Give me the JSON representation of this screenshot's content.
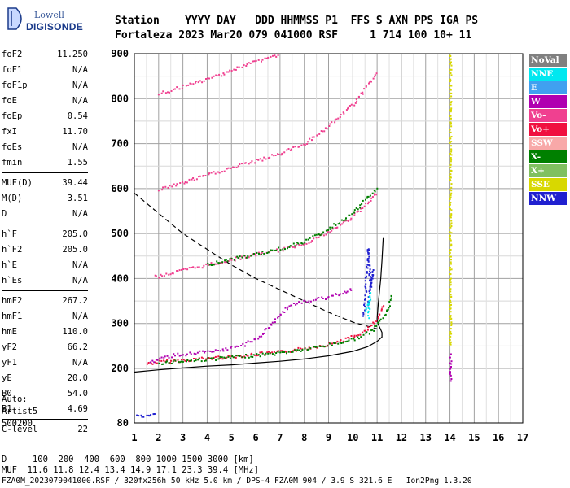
{
  "logo": {
    "line1": "Lowell",
    "line2": "DIGISONDE"
  },
  "header": {
    "line1": "Station    YYYY DAY   DDD HHMMSS P1  FFS S AXN PPS IGA PS",
    "line2": "Fortaleza 2023 Mar20 079 041000 RSF     1 714 100 10+ 11"
  },
  "params": [
    {
      "key": "foF2",
      "value": "11.250"
    },
    {
      "key": "foF1",
      "value": "N/A"
    },
    {
      "key": "foF1p",
      "value": "N/A"
    },
    {
      "key": "foE",
      "value": "N/A"
    },
    {
      "key": "foEp",
      "value": "0.54"
    },
    {
      "key": "fxI",
      "value": "11.70"
    },
    {
      "key": "foEs",
      "value": "N/A"
    },
    {
      "key": "fmin",
      "value": "1.55"
    },
    {
      "key": "MUF(D)",
      "value": "39.44"
    },
    {
      "key": "M(D)",
      "value": "3.51"
    },
    {
      "key": "D",
      "value": "N/A"
    },
    {
      "key": "h`F",
      "value": "205.0"
    },
    {
      "key": "h`F2",
      "value": "205.0"
    },
    {
      "key": "h`E",
      "value": "N/A"
    },
    {
      "key": "h`Es",
      "value": "N/A"
    },
    {
      "key": "hmF2",
      "value": "267.2"
    },
    {
      "key": "hmF1",
      "value": "N/A"
    },
    {
      "key": "hmE",
      "value": "110.0"
    },
    {
      "key": "yF2",
      "value": "66.2"
    },
    {
      "key": "yF1",
      "value": "N/A"
    },
    {
      "key": "yE",
      "value": "20.0"
    },
    {
      "key": "B0",
      "value": "54.0"
    },
    {
      "key": "B1",
      "value": "4.69"
    },
    {
      "key": "C-level",
      "value": "22"
    }
  ],
  "auto": {
    "line1": "Auto:",
    "line2": "Artist5",
    "line3": "500200"
  },
  "bottom": {
    "d_row": "D     100  200  400  600  800 1000 1500 3000 [km]",
    "muf_row": "MUF  11.6 11.8 12.4 13.4 14.9 17.1 23.3 39.4 [MHz]",
    "file_row": "FZA0M_2023079041000.RSF / 320fx256h 50 kHz 5.0 km / DPS-4 FZA0M 904 / 3.9 S 321.6 E   Ion2Png 1.3.20"
  },
  "legend": [
    {
      "label": "NoVal",
      "color": "#808080"
    },
    {
      "label": "NNE",
      "color": "#00e8f0"
    },
    {
      "label": "E",
      "color": "#40a0f0"
    },
    {
      "label": "W",
      "color": "#b000b0"
    },
    {
      "label": "Vo-",
      "color": "#f04090"
    },
    {
      "label": "Vo+",
      "color": "#f01040"
    },
    {
      "label": "SSW",
      "color": "#f8a8a8"
    },
    {
      "label": "X-",
      "color": "#008000"
    },
    {
      "label": "X+",
      "color": "#80c060"
    },
    {
      "label": "SSE",
      "color": "#d8d800"
    },
    {
      "label": "NNW",
      "color": "#2020d0"
    }
  ],
  "chart_data": {
    "type": "scatter",
    "xlim": [
      1,
      17
    ],
    "ylim": [
      80,
      900
    ],
    "x_ticks": [
      1,
      2,
      3,
      4,
      5,
      6,
      7,
      8,
      9,
      10,
      11,
      12,
      13,
      14,
      15,
      16,
      17
    ],
    "y_ticks": [
      80,
      200,
      300,
      400,
      500,
      600,
      700,
      800,
      900
    ],
    "grid": true,
    "traces": [
      {
        "name": "O-trace 1st hop",
        "color": "#f01040",
        "points": [
          [
            1.5,
            212
          ],
          [
            2,
            216
          ],
          [
            3,
            220
          ],
          [
            4,
            224
          ],
          [
            5,
            228
          ],
          [
            6,
            233
          ],
          [
            7,
            238
          ],
          [
            8,
            246
          ],
          [
            9,
            256
          ],
          [
            10,
            272
          ],
          [
            10.5,
            285
          ],
          [
            11,
            310
          ],
          [
            11.25,
            345
          ]
        ]
      },
      {
        "name": "X-trace 1st hop",
        "color": "#008000",
        "points": [
          [
            2,
            214
          ],
          [
            3,
            218
          ],
          [
            4,
            222
          ],
          [
            5,
            226
          ],
          [
            6,
            231
          ],
          [
            7,
            236
          ],
          [
            8,
            244
          ],
          [
            9,
            254
          ],
          [
            10,
            266
          ],
          [
            10.8,
            285
          ],
          [
            11.4,
            330
          ],
          [
            11.6,
            370
          ]
        ]
      },
      {
        "name": "O-trace 2nd hop",
        "color": "#f04090",
        "points": [
          [
            1.8,
            405
          ],
          [
            3,
            420
          ],
          [
            4,
            432
          ],
          [
            5,
            444
          ],
          [
            6,
            455
          ],
          [
            7,
            465
          ],
          [
            8,
            480
          ],
          [
            9,
            505
          ],
          [
            10,
            540
          ],
          [
            10.7,
            575
          ],
          [
            11,
            595
          ]
        ]
      },
      {
        "name": "X-trace 2nd hop",
        "color": "#008000",
        "points": [
          [
            4,
            433
          ],
          [
            5,
            445
          ],
          [
            6,
            456
          ],
          [
            7,
            468
          ],
          [
            8,
            484
          ],
          [
            9,
            512
          ],
          [
            10,
            548
          ],
          [
            11,
            605
          ]
        ]
      },
      {
        "name": "O-trace 3rd hop",
        "color": "#f04090",
        "points": [
          [
            2,
            600
          ],
          [
            3,
            615
          ],
          [
            4,
            632
          ],
          [
            5,
            648
          ],
          [
            6,
            663
          ],
          [
            7,
            680
          ],
          [
            8,
            702
          ],
          [
            9,
            740
          ],
          [
            10,
            790
          ],
          [
            11,
            860
          ]
        ]
      },
      {
        "name": "O-trace 4th hop",
        "color": "#f04090",
        "points": [
          [
            2,
            812
          ],
          [
            3,
            828
          ],
          [
            4,
            845
          ],
          [
            5,
            865
          ],
          [
            6,
            885
          ],
          [
            7,
            900
          ]
        ]
      },
      {
        "name": "Oblique W",
        "color": "#b000b0",
        "points": [
          [
            1.6,
            215
          ],
          [
            2.5,
            230
          ],
          [
            3.5,
            236
          ],
          [
            4.5,
            240
          ],
          [
            5.5,
            255
          ],
          [
            6.2,
            275
          ],
          [
            6.8,
            310
          ],
          [
            7.3,
            340
          ],
          [
            8,
            350
          ],
          [
            9,
            360
          ],
          [
            10,
            380
          ]
        ]
      },
      {
        "name": "Spread NNW",
        "color": "#2020d0",
        "points": [
          [
            10.4,
            320
          ],
          [
            10.5,
            360
          ],
          [
            10.5,
            400
          ],
          [
            10.6,
            440
          ],
          [
            10.6,
            470
          ],
          [
            10.7,
            380
          ],
          [
            10.8,
            420
          ],
          [
            10.6,
            340
          ]
        ]
      },
      {
        "name": "Spread NNE",
        "color": "#00e8f0",
        "points": [
          [
            10.5,
            330
          ],
          [
            10.6,
            350
          ],
          [
            10.7,
            370
          ],
          [
            10.6,
            310
          ]
        ]
      },
      {
        "name": "Low echo",
        "color": "#2020d0",
        "points": [
          [
            1.1,
            95
          ],
          [
            1.3,
            96
          ],
          [
            1.6,
            97
          ],
          [
            1.9,
            105
          ]
        ]
      },
      {
        "name": "SSE column",
        "color": "#d8d800",
        "points": [
          [
            14,
            900
          ],
          [
            14,
            720
          ],
          [
            14,
            350
          ],
          [
            14,
            250
          ]
        ]
      },
      {
        "name": "Mixed column",
        "color": "#b000b0",
        "points": [
          [
            14,
            230
          ],
          [
            14,
            210
          ],
          [
            14,
            190
          ],
          [
            14,
            170
          ]
        ]
      }
    ],
    "profile_solid": [
      [
        1,
        192
      ],
      [
        2,
        197
      ],
      [
        3,
        201
      ],
      [
        4,
        205
      ],
      [
        5,
        208
      ],
      [
        6,
        212
      ],
      [
        7,
        216
      ],
      [
        8,
        221
      ],
      [
        9,
        228
      ],
      [
        10,
        238
      ],
      [
        10.6,
        248
      ],
      [
        11,
        260
      ],
      [
        11.2,
        270
      ],
      [
        11.2,
        280
      ],
      [
        11.05,
        298
      ],
      [
        11,
        310
      ],
      [
        11.05,
        345
      ],
      [
        11.15,
        400
      ],
      [
        11.2,
        440
      ],
      [
        11.25,
        490
      ]
    ],
    "profile_dashed": [
      [
        1,
        590
      ],
      [
        2,
        545
      ],
      [
        3,
        500
      ],
      [
        4,
        465
      ],
      [
        5,
        430
      ],
      [
        6,
        400
      ],
      [
        7,
        375
      ],
      [
        8,
        350
      ],
      [
        9,
        325
      ],
      [
        10,
        303
      ],
      [
        11,
        288
      ]
    ]
  }
}
